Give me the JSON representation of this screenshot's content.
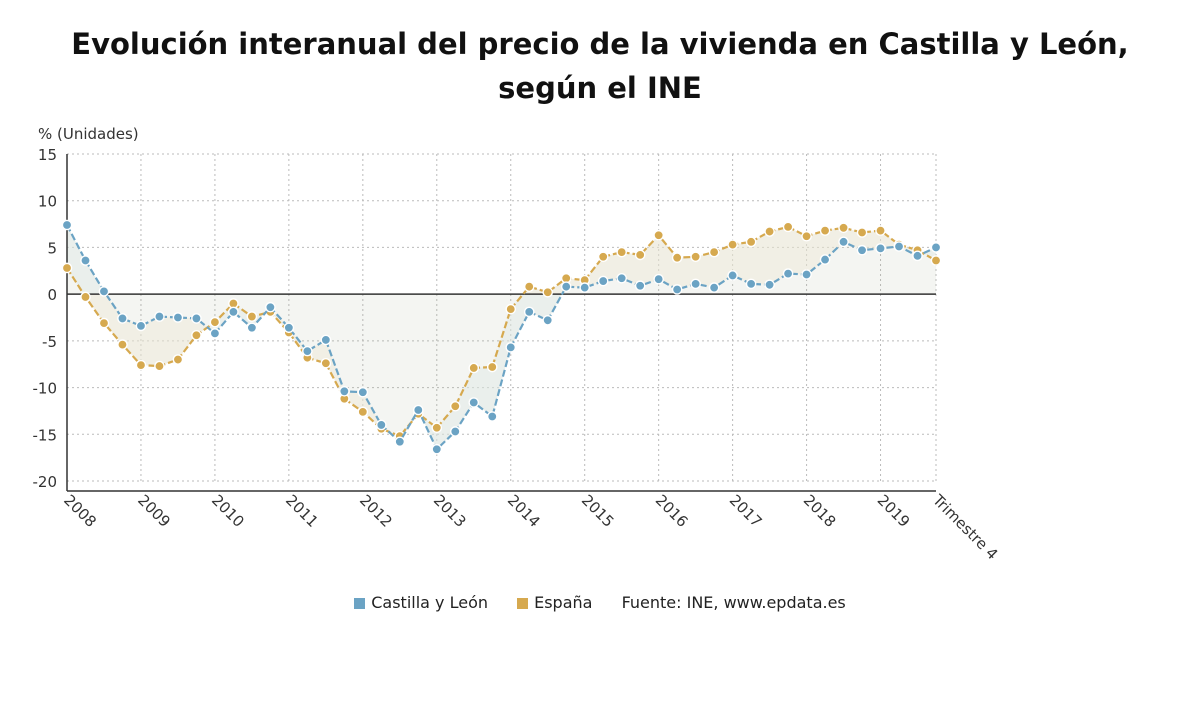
{
  "title": {
    "line1": "Evolución interanual del precio de la vivienda en Castilla y León,",
    "line2": "según el INE"
  },
  "colors": {
    "castilla": "#6ba3c4",
    "espana": "#d6a94f",
    "grid": "#bbbbbb",
    "axis": "#333333"
  },
  "legend": {
    "castilla": "Castilla y León",
    "espana": "España",
    "source": "Fuente: INE, www.epdata.es"
  },
  "chart_data": {
    "type": "line",
    "ylabel": "% (Unidades)",
    "ylim": [
      -20,
      15
    ],
    "yticks": [
      15,
      10,
      5,
      0,
      -5,
      -10,
      -15,
      -20
    ],
    "x_labels": [
      "2008",
      "2009",
      "2010",
      "2011",
      "2012",
      "2013",
      "2014",
      "2015",
      "2016",
      "2017",
      "2018",
      "2019",
      "Trimestre 4"
    ],
    "x_label_quarter_index": [
      0,
      4,
      8,
      12,
      16,
      20,
      24,
      28,
      32,
      36,
      40,
      44,
      47
    ],
    "grid": true,
    "legend_position": "bottom-center",
    "series": [
      {
        "name": "Castilla y León",
        "color": "#6ba3c4",
        "values": [
          7.4,
          3.6,
          0.3,
          -2.6,
          -3.4,
          -2.4,
          -2.5,
          -2.6,
          -4.2,
          -1.9,
          -3.6,
          -1.4,
          -3.6,
          -6.1,
          -4.9,
          -10.4,
          -10.5,
          -14.0,
          -15.8,
          -12.4,
          -16.6,
          -14.7,
          -11.6,
          -13.1,
          -5.7,
          -1.9,
          -2.8,
          0.8,
          0.7,
          1.4,
          1.7,
          0.9,
          1.6,
          0.5,
          1.1,
          0.7,
          2.0,
          1.1,
          1.0,
          2.2,
          2.1,
          3.7,
          5.6,
          4.7,
          4.9,
          5.1,
          4.1,
          5.0
        ]
      },
      {
        "name": "España",
        "color": "#d6a94f",
        "values": [
          2.8,
          -0.3,
          -3.1,
          -5.4,
          -7.6,
          -7.7,
          -7.0,
          -4.4,
          -3.0,
          -1.0,
          -2.4,
          -1.9,
          -4.1,
          -6.8,
          -7.4,
          -11.2,
          -12.6,
          -14.4,
          -15.2,
          -12.8,
          -14.3,
          -12.0,
          -7.9,
          -7.8,
          -1.6,
          0.8,
          0.2,
          1.7,
          1.5,
          4.0,
          4.5,
          4.2,
          6.3,
          3.9,
          4.0,
          4.5,
          5.3,
          5.6,
          6.7,
          7.2,
          6.2,
          6.8,
          7.1,
          6.6,
          6.8,
          5.3,
          4.7,
          3.6
        ]
      }
    ]
  }
}
